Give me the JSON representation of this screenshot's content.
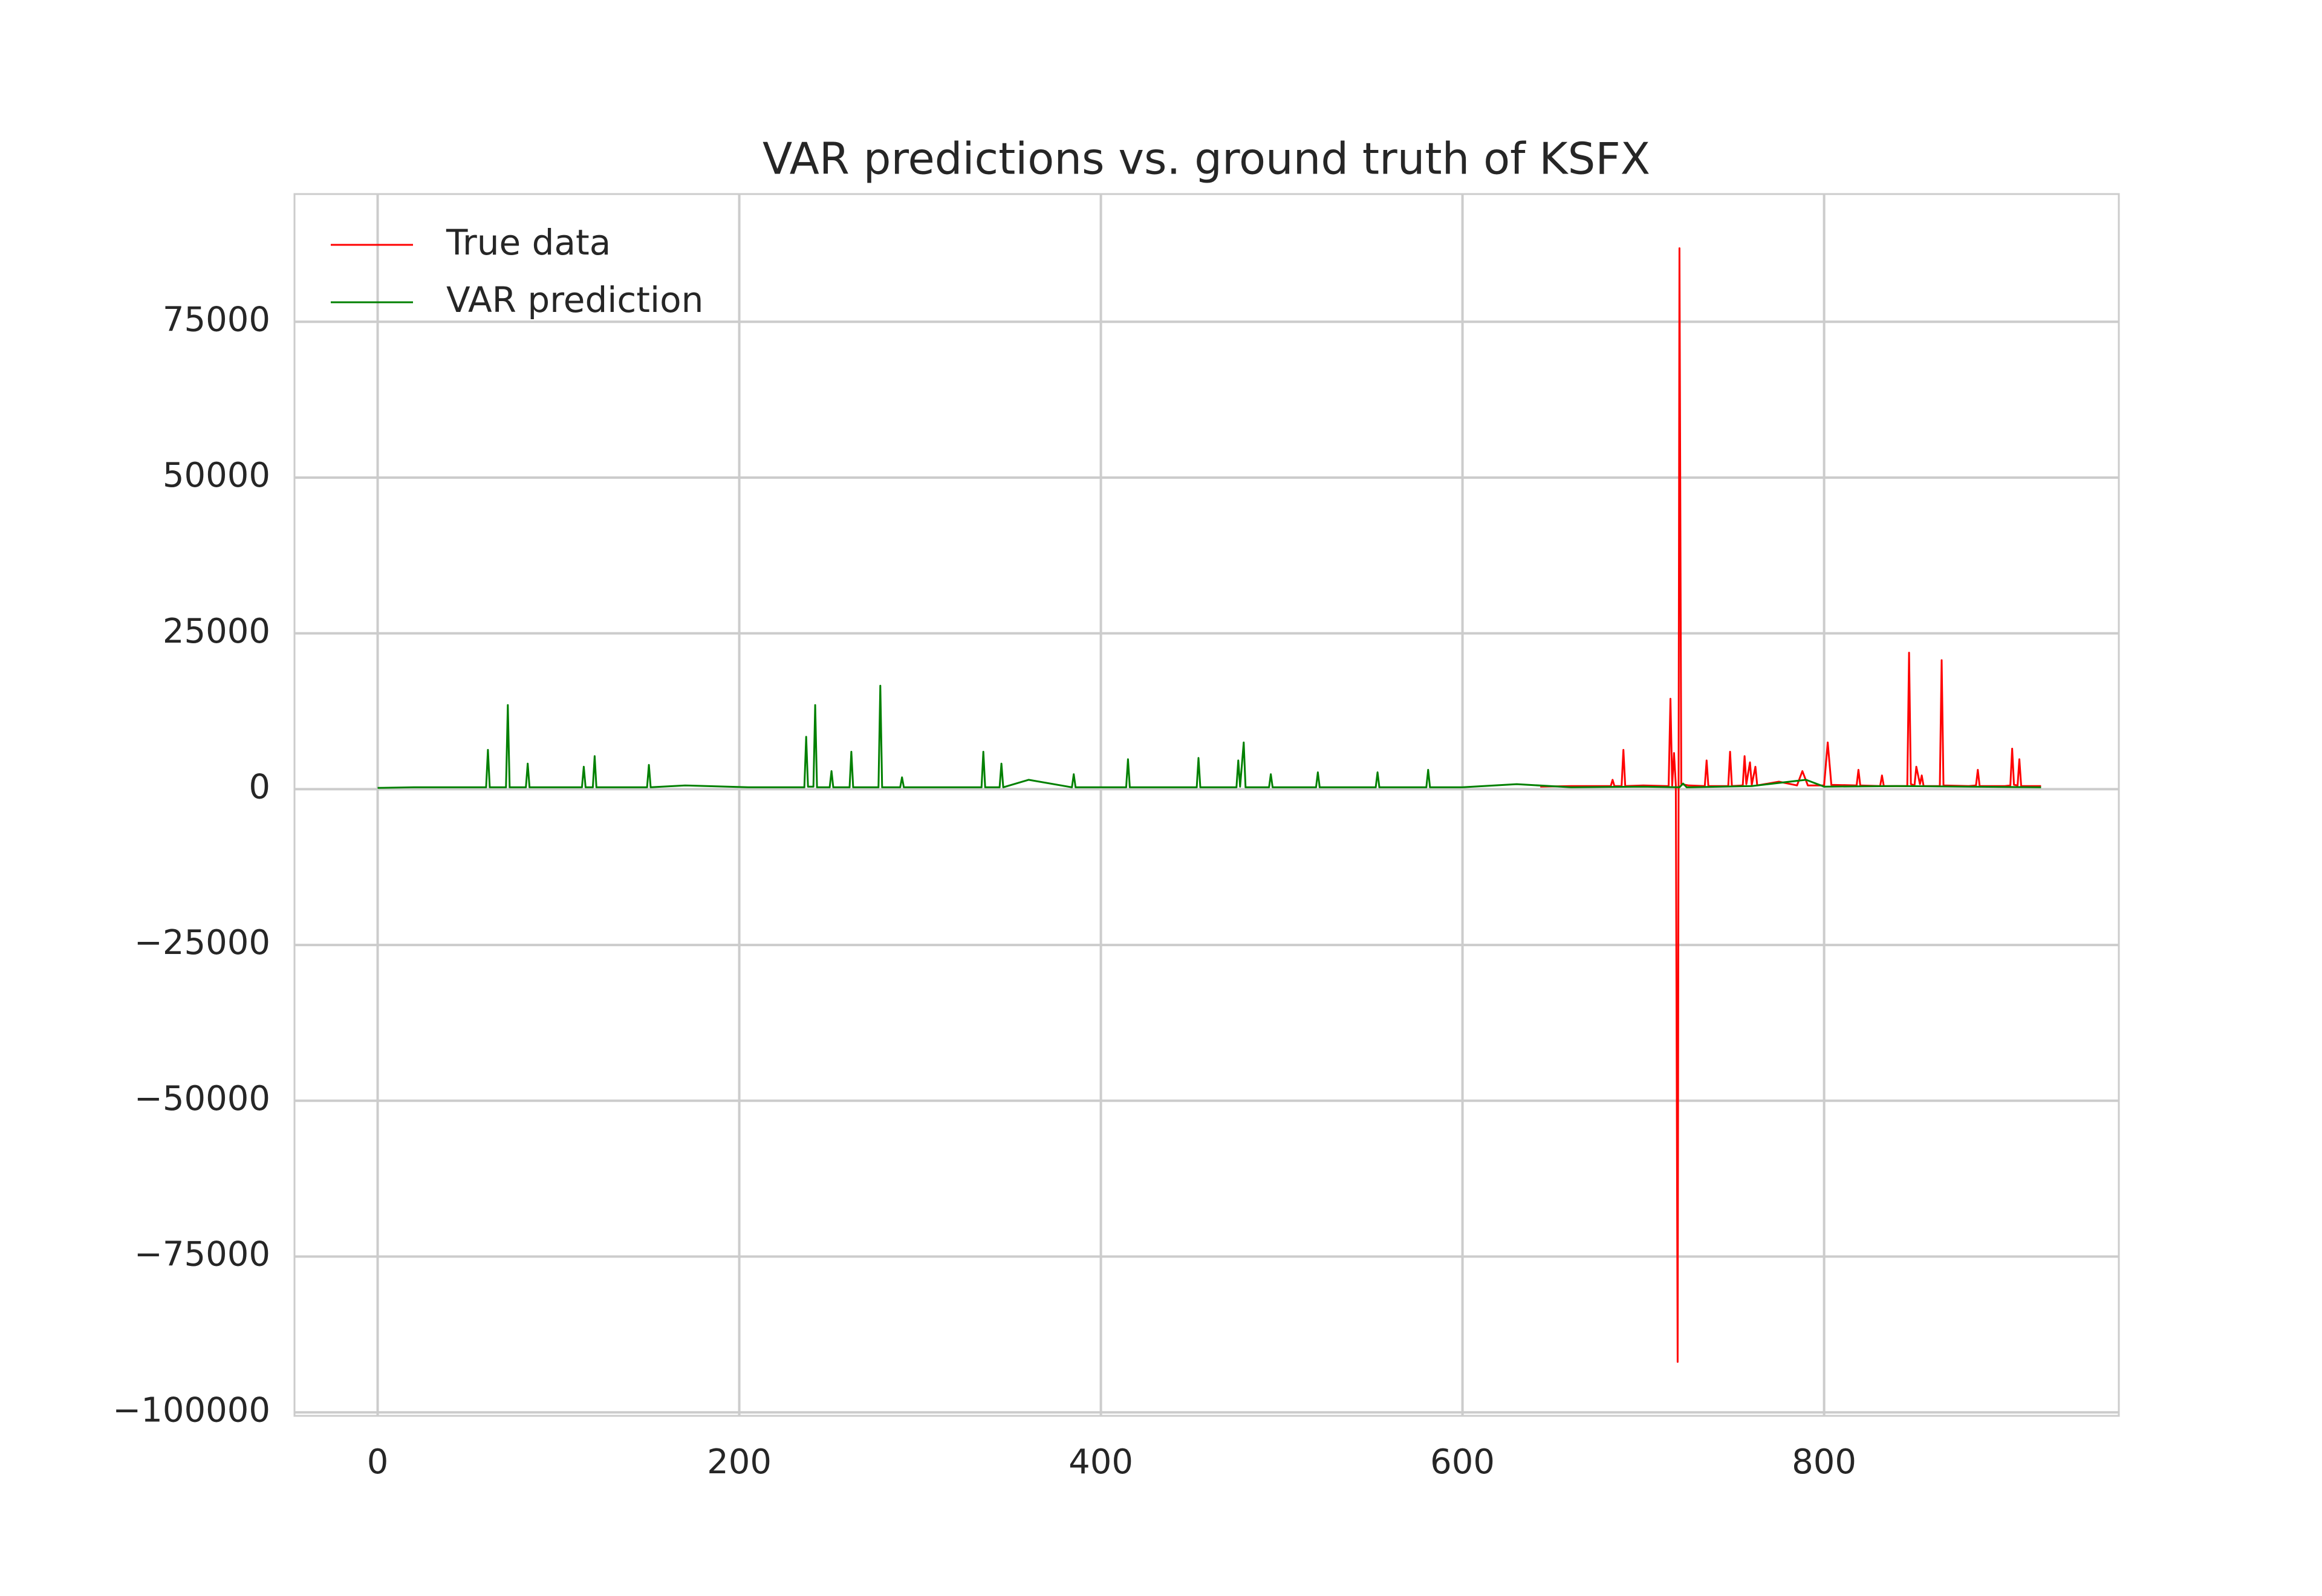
{
  "chart_data": {
    "type": "line",
    "title": "VAR predictions vs. ground truth of KSFX",
    "xlim": [
      -46,
      963
    ],
    "ylim": [
      -100560,
      95490
    ],
    "xticks": [
      0,
      200,
      400,
      600,
      800
    ],
    "yticks": [
      {
        "value": -100000,
        "label": "−100000"
      },
      {
        "value": -75000,
        "label": "−75000"
      },
      {
        "value": -50000,
        "label": "−50000"
      },
      {
        "value": -25000,
        "label": "−25000"
      },
      0,
      25000,
      50000,
      75000
    ],
    "grid": true,
    "legend": "upper left",
    "series": [
      {
        "name": "True data",
        "color": "#ff0000",
        "x": [
          643,
          660,
          682,
          683,
          684,
          688,
          689,
          690,
          700,
          713,
          714,
          715,
          716,
          717,
          718,
          719,
          720,
          721,
          725,
          734,
          735,
          736,
          747,
          748,
          749,
          755,
          756,
          757,
          759,
          760,
          762,
          763,
          775,
          785,
          788,
          791,
          800,
          802,
          804,
          818,
          819,
          820,
          831,
          832,
          833,
          846,
          847,
          848,
          850,
          851,
          853,
          854,
          855,
          864,
          865,
          866,
          880,
          884,
          885,
          886,
          900,
          903,
          904,
          905,
          907,
          908,
          909,
          920
        ],
        "values": [
          400,
          500,
          500,
          1500,
          500,
          500,
          6300,
          500,
          600,
          500,
          500,
          14500,
          600,
          5800,
          600,
          -91900,
          86800,
          800,
          600,
          500,
          4600,
          500,
          500,
          6000,
          500,
          600,
          5300,
          800,
          4300,
          700,
          3600,
          600,
          1200,
          600,
          2900,
          600,
          600,
          7500,
          700,
          600,
          3100,
          600,
          500,
          2200,
          500,
          500,
          21900,
          800,
          600,
          3600,
          800,
          2200,
          500,
          500,
          20700,
          600,
          500,
          600,
          3100,
          500,
          500,
          600,
          6500,
          700,
          600,
          4800,
          500,
          500
        ]
      },
      {
        "name": "VAR prediction",
        "color": "#008000",
        "x": [
          0,
          20,
          45,
          60,
          61,
          62,
          71,
          72,
          73,
          82,
          83,
          84,
          113,
          114,
          115,
          119,
          120,
          121,
          149,
          150,
          151,
          170,
          205,
          220,
          236,
          237,
          238,
          241,
          242,
          243,
          250,
          251,
          252,
          261,
          262,
          263,
          277,
          278,
          279,
          289,
          290,
          291,
          325,
          334,
          335,
          336,
          344,
          345,
          346,
          360,
          384,
          385,
          386,
          414,
          415,
          416,
          453,
          454,
          455,
          475,
          476,
          477,
          479,
          480,
          493,
          494,
          495,
          519,
          520,
          521,
          552,
          553,
          554,
          580,
          581,
          582,
          600,
          630,
          660,
          700,
          720,
          722,
          724,
          760,
          790,
          800,
          840,
          880,
          920
        ],
        "values": [
          200,
          300,
          300,
          300,
          6300,
          300,
          300,
          13500,
          300,
          300,
          4100,
          300,
          300,
          3600,
          300,
          300,
          5300,
          300,
          300,
          3900,
          300,
          600,
          300,
          300,
          300,
          8400,
          400,
          400,
          13500,
          300,
          300,
          2900,
          300,
          300,
          6000,
          300,
          300,
          16600,
          300,
          300,
          1900,
          300,
          300,
          300,
          6000,
          300,
          300,
          4100,
          300,
          1500,
          300,
          2400,
          300,
          300,
          4800,
          300,
          300,
          5000,
          300,
          300,
          4600,
          400,
          7500,
          300,
          300,
          2400,
          300,
          300,
          2700,
          300,
          300,
          2700,
          300,
          300,
          3100,
          300,
          300,
          800,
          300,
          400,
          300,
          900,
          300,
          500,
          1500,
          400,
          500,
          400,
          300
        ]
      }
    ]
  }
}
